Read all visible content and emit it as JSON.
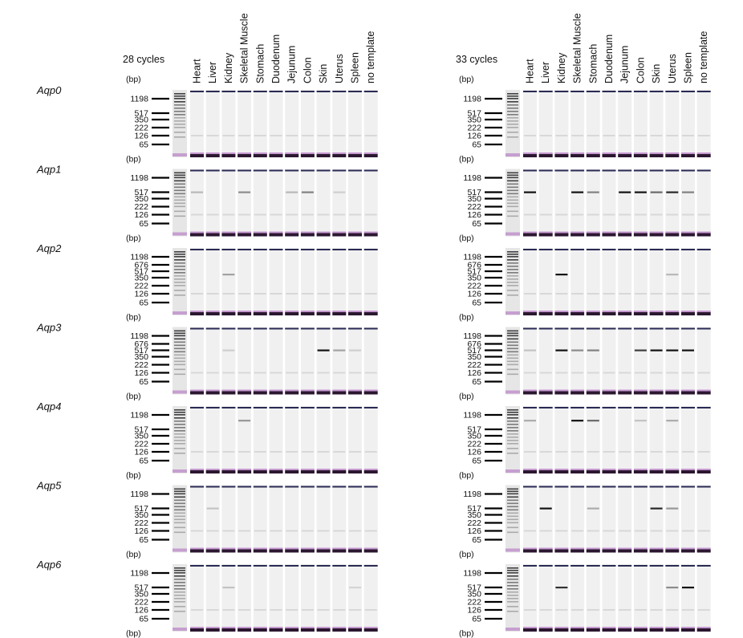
{
  "lanes": [
    "Heart",
    "Liver",
    "Kidney",
    "Skeletal Muscle",
    "Stomach",
    "Duodenum",
    "Jejunum",
    "Colon",
    "Skin",
    "Uterus",
    "Spleen",
    "no template"
  ],
  "panels": [
    {
      "cycles_label": "28 cycles"
    },
    {
      "cycles_label": "33 cycles"
    }
  ],
  "bp_label": "(bp)",
  "genes": [
    {
      "name": "Aqp0",
      "markers": [
        "1198",
        "517",
        "350",
        "222",
        "126",
        "65"
      ],
      "bands": [
        [],
        []
      ]
    },
    {
      "name": "Aqp1",
      "markers": [
        "1198",
        "517",
        "350",
        "222",
        "126",
        "65"
      ],
      "bands": [
        [
          {
            "lane": 0,
            "bp": 517,
            "strength": 0.25
          },
          {
            "lane": 3,
            "bp": 517,
            "strength": 0.45
          },
          {
            "lane": 6,
            "bp": 517,
            "strength": 0.25
          },
          {
            "lane": 7,
            "bp": 517,
            "strength": 0.5
          },
          {
            "lane": 9,
            "bp": 517,
            "strength": 0.15
          }
        ],
        [
          {
            "lane": 0,
            "bp": 517,
            "strength": 1
          },
          {
            "lane": 3,
            "bp": 517,
            "strength": 1
          },
          {
            "lane": 4,
            "bp": 517,
            "strength": 0.5
          },
          {
            "lane": 6,
            "bp": 517,
            "strength": 1
          },
          {
            "lane": 7,
            "bp": 517,
            "strength": 1
          },
          {
            "lane": 8,
            "bp": 517,
            "strength": 0.6
          },
          {
            "lane": 9,
            "bp": 517,
            "strength": 0.9
          },
          {
            "lane": 10,
            "bp": 517,
            "strength": 0.5
          }
        ]
      ]
    },
    {
      "name": "Aqp2",
      "markers": [
        "1198",
        "676",
        "517",
        "350",
        "222",
        "126",
        "65"
      ],
      "bands": [
        [
          {
            "lane": 2,
            "bp": 450,
            "strength": 0.35
          }
        ],
        [
          {
            "lane": 2,
            "bp": 450,
            "strength": 1
          },
          {
            "lane": 9,
            "bp": 450,
            "strength": 0.25
          }
        ]
      ]
    },
    {
      "name": "Aqp3",
      "markers": [
        "1198",
        "676",
        "517",
        "350",
        "222",
        "126",
        "65"
      ],
      "bands": [
        [
          {
            "lane": 2,
            "bp": 517,
            "strength": 0.15
          },
          {
            "lane": 8,
            "bp": 517,
            "strength": 1
          },
          {
            "lane": 9,
            "bp": 517,
            "strength": 0.35
          },
          {
            "lane": 10,
            "bp": 517,
            "strength": 0.15
          }
        ],
        [
          {
            "lane": 0,
            "bp": 517,
            "strength": 0.2
          },
          {
            "lane": 2,
            "bp": 517,
            "strength": 1
          },
          {
            "lane": 3,
            "bp": 517,
            "strength": 0.45
          },
          {
            "lane": 4,
            "bp": 517,
            "strength": 0.5
          },
          {
            "lane": 7,
            "bp": 517,
            "strength": 0.8
          },
          {
            "lane": 8,
            "bp": 517,
            "strength": 1
          },
          {
            "lane": 9,
            "bp": 517,
            "strength": 1
          },
          {
            "lane": 10,
            "bp": 517,
            "strength": 1
          }
        ]
      ]
    },
    {
      "name": "Aqp4",
      "markers": [
        "1198",
        "517",
        "350",
        "222",
        "126",
        "65"
      ],
      "bands": [
        [
          {
            "lane": 3,
            "bp": 800,
            "strength": 0.4
          }
        ],
        [
          {
            "lane": 0,
            "bp": 800,
            "strength": 0.3
          },
          {
            "lane": 3,
            "bp": 800,
            "strength": 1
          },
          {
            "lane": 4,
            "bp": 800,
            "strength": 0.6
          },
          {
            "lane": 7,
            "bp": 800,
            "strength": 0.2
          },
          {
            "lane": 9,
            "bp": 800,
            "strength": 0.3
          }
        ]
      ]
    },
    {
      "name": "Aqp5",
      "markers": [
        "1198",
        "517",
        "350",
        "222",
        "126",
        "65"
      ],
      "bands": [
        [
          {
            "lane": 1,
            "bp": 517,
            "strength": 0.2
          }
        ],
        [
          {
            "lane": 1,
            "bp": 517,
            "strength": 1
          },
          {
            "lane": 4,
            "bp": 517,
            "strength": 0.3
          },
          {
            "lane": 8,
            "bp": 517,
            "strength": 0.9
          },
          {
            "lane": 9,
            "bp": 517,
            "strength": 0.4
          }
        ]
      ]
    },
    {
      "name": "Aqp6",
      "markers": [
        "1198",
        "517",
        "350",
        "222",
        "126",
        "65"
      ],
      "bands": [
        [
          {
            "lane": 2,
            "bp": 517,
            "strength": 0.2
          },
          {
            "lane": 10,
            "bp": 517,
            "strength": 0.12
          }
        ],
        [
          {
            "lane": 2,
            "bp": 517,
            "strength": 0.85
          },
          {
            "lane": 9,
            "bp": 517,
            "strength": 0.45
          },
          {
            "lane": 10,
            "bp": 517,
            "strength": 1
          }
        ]
      ]
    }
  ],
  "colors": {
    "band": "#111111",
    "lane_bg": "#f0f0f0",
    "ladder_bg": "#e6e6e6",
    "top_line": "#2a2a55",
    "bottom_band": "#2b1730",
    "bottom_halo": "#b070c0"
  }
}
